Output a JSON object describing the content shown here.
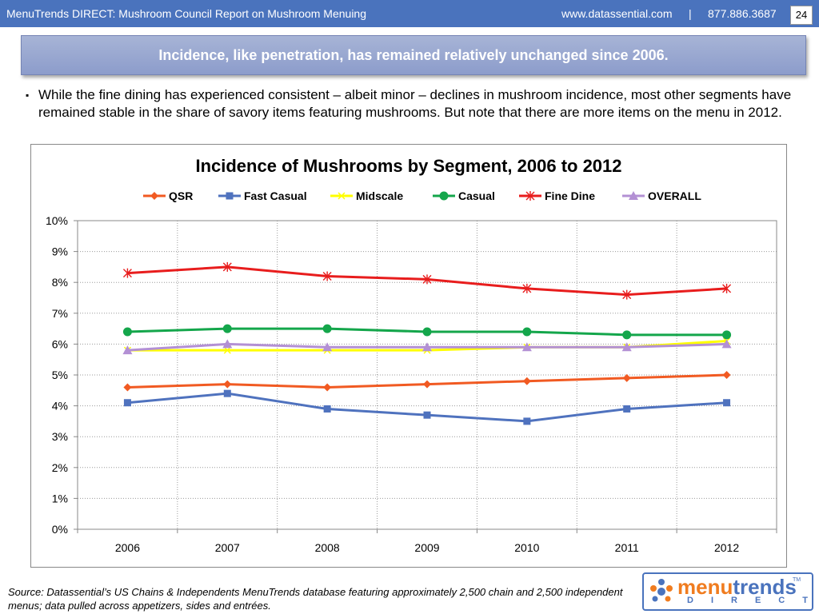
{
  "header": {
    "title": "MenuTrends DIRECT: Mushroom Council Report on Mushroom Menuing",
    "website": "www.datassential.com",
    "separator": "|",
    "phone": "877.886.3687",
    "page_number": "24"
  },
  "banner": {
    "text": "Incidence, like penetration, has remained relatively unchanged since 2006."
  },
  "bullet": {
    "marker": "▪",
    "text": "While the fine dining has experienced consistent – albeit minor – declines in mushroom incidence, most other segments have remained stable in the share of savory items featuring mushrooms.  But note that there are more items on the menu in 2012."
  },
  "chart_data": {
    "type": "line",
    "title": "Incidence of Mushrooms by Segment, 2006 to 2012",
    "x": [
      "2006",
      "2007",
      "2008",
      "2009",
      "2010",
      "2011",
      "2012"
    ],
    "ylim": [
      0,
      10
    ],
    "y_unit": "%",
    "y_ticks": [
      "0%",
      "1%",
      "2%",
      "3%",
      "4%",
      "5%",
      "6%",
      "7%",
      "8%",
      "9%",
      "10%"
    ],
    "grid": true,
    "legend_position": "top",
    "series": [
      {
        "name": "QSR",
        "color": "#f15a22",
        "marker": "diamond",
        "values": [
          4.6,
          4.7,
          4.6,
          4.7,
          4.8,
          4.9,
          5.0
        ]
      },
      {
        "name": "Fast Casual",
        "color": "#4f72be",
        "marker": "square",
        "values": [
          4.1,
          4.4,
          3.9,
          3.7,
          3.5,
          3.9,
          4.1
        ]
      },
      {
        "name": "Midscale",
        "color": "#ffff00",
        "marker": "x",
        "values": [
          5.8,
          5.8,
          5.8,
          5.8,
          5.9,
          5.9,
          6.1
        ]
      },
      {
        "name": "Casual",
        "color": "#14a64b",
        "marker": "circle",
        "values": [
          6.4,
          6.5,
          6.5,
          6.4,
          6.4,
          6.3,
          6.3
        ]
      },
      {
        "name": "Fine Dine",
        "color": "#e81d1d",
        "marker": "star",
        "values": [
          8.3,
          8.5,
          8.2,
          8.1,
          7.8,
          7.6,
          7.8
        ]
      },
      {
        "name": "OVERALL",
        "color": "#b390d4",
        "marker": "triangle",
        "values": [
          5.8,
          6.0,
          5.9,
          5.9,
          5.9,
          5.9,
          6.0
        ]
      }
    ]
  },
  "footer": {
    "source": "Source: Datassential’s US Chains & Independents MenuTrends database featuring approximately 2,500 chain and 2,500 independent menus; data pulled across appetizers, sides and entrées.",
    "logo_menu": "menu",
    "logo_trends": "trends",
    "logo_direct": "DIRECT",
    "logo_tm": "TM"
  }
}
